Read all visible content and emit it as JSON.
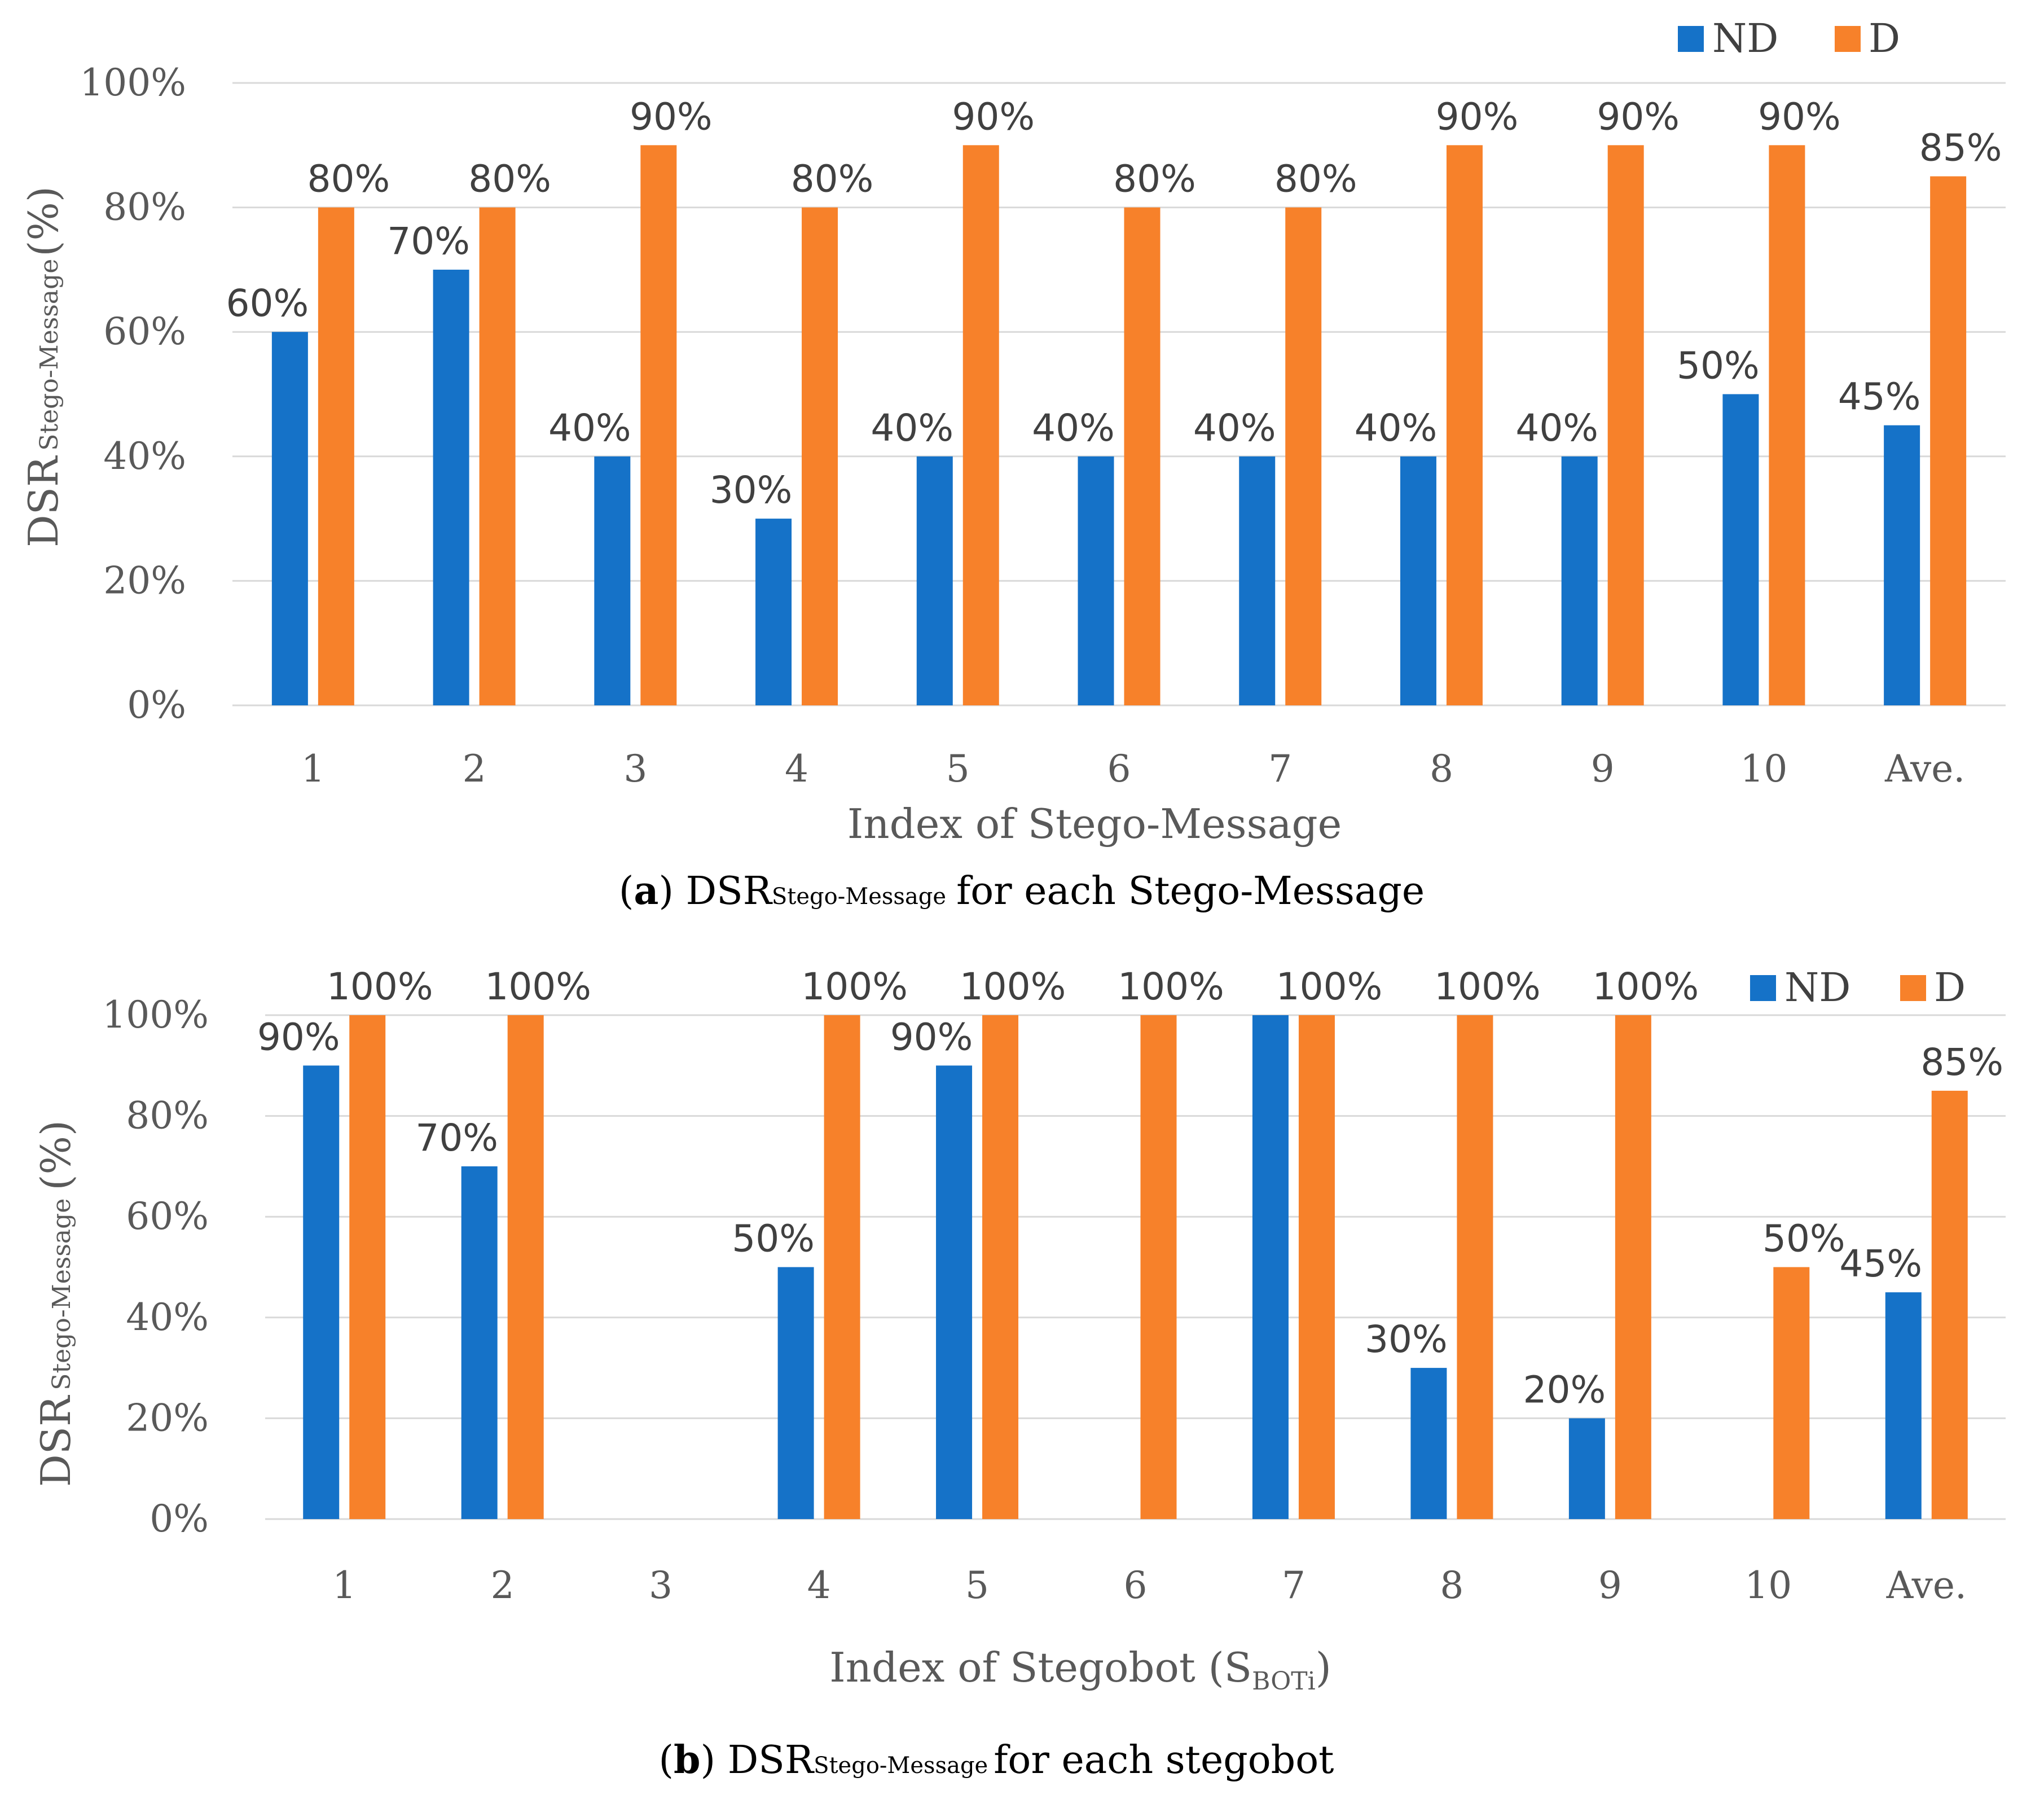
{
  "colors": {
    "nd": "#1572C8",
    "d": "#F7812A",
    "grid": "#D9D9D9"
  },
  "chart_data": [
    {
      "type": "bar",
      "id": "a",
      "categories": [
        "1",
        "2",
        "3",
        "4",
        "5",
        "6",
        "7",
        "8",
        "9",
        "10",
        "Ave."
      ],
      "series": [
        {
          "name": "ND",
          "values": [
            60,
            70,
            40,
            30,
            40,
            40,
            40,
            40,
            40,
            50,
            45
          ],
          "labels": [
            "60%",
            "70%",
            "40%",
            "30%",
            "40%",
            "40%",
            "40%",
            "40%",
            "40%",
            "50%",
            "45%"
          ]
        },
        {
          "name": "D",
          "values": [
            80,
            80,
            90,
            80,
            90,
            80,
            80,
            90,
            90,
            90,
            85
          ],
          "labels": [
            "80%",
            "80%",
            "90%",
            "80%",
            "90%",
            "80%",
            "80%",
            "90%",
            "90%",
            "90%",
            "85%"
          ]
        }
      ],
      "yticks": [
        "0%",
        "20%",
        "40%",
        "60%",
        "80%",
        "100%"
      ],
      "ylim": [
        0,
        100
      ],
      "ylabel_main": "DSR",
      "ylabel_sub": "Stego-Message",
      "ylabel_suffix": "(%)",
      "xlabel": "Index of Stego-Message",
      "legend_position": "top-right",
      "caption_letter": "a",
      "caption_dsr": "DSR",
      "caption_sub": "Stego-Message",
      "caption_rest": "for each Stego-Message"
    },
    {
      "type": "bar",
      "id": "b",
      "categories": [
        "1",
        "2",
        "3",
        "4",
        "5",
        "6",
        "7",
        "8",
        "9",
        "10",
        "Ave."
      ],
      "series": [
        {
          "name": "ND",
          "values": [
            90,
            70,
            0,
            50,
            90,
            0,
            100,
            30,
            20,
            0,
            45
          ],
          "labels": [
            "90%",
            "70%",
            "",
            "50%",
            "90%",
            "",
            "",
            "30%",
            "20%",
            "",
            "45%"
          ]
        },
        {
          "name": "D",
          "values": [
            100,
            100,
            0,
            100,
            100,
            100,
            100,
            100,
            100,
            50,
            85
          ],
          "labels": [
            "100%",
            "100%",
            "",
            "100%",
            "100%",
            "100%",
            "100%",
            "100%",
            "100%",
            "50%",
            "85%"
          ]
        }
      ],
      "yticks": [
        "0%",
        "20%",
        "40%",
        "60%",
        "80%",
        "100%"
      ],
      "ylim": [
        0,
        100
      ],
      "ylabel_main": "DSR",
      "ylabel_sub": "Stego-Message",
      "ylabel_suffix": "(%)",
      "xlabel_main": "Index of Stegobot (S",
      "xlabel_sub": "BOTi",
      "xlabel_end": ")",
      "legend_position": "top-right",
      "caption_letter": "b",
      "caption_dsr": "DSR",
      "caption_sub": "Stego-Message",
      "caption_rest": "for each stegobot"
    }
  ]
}
